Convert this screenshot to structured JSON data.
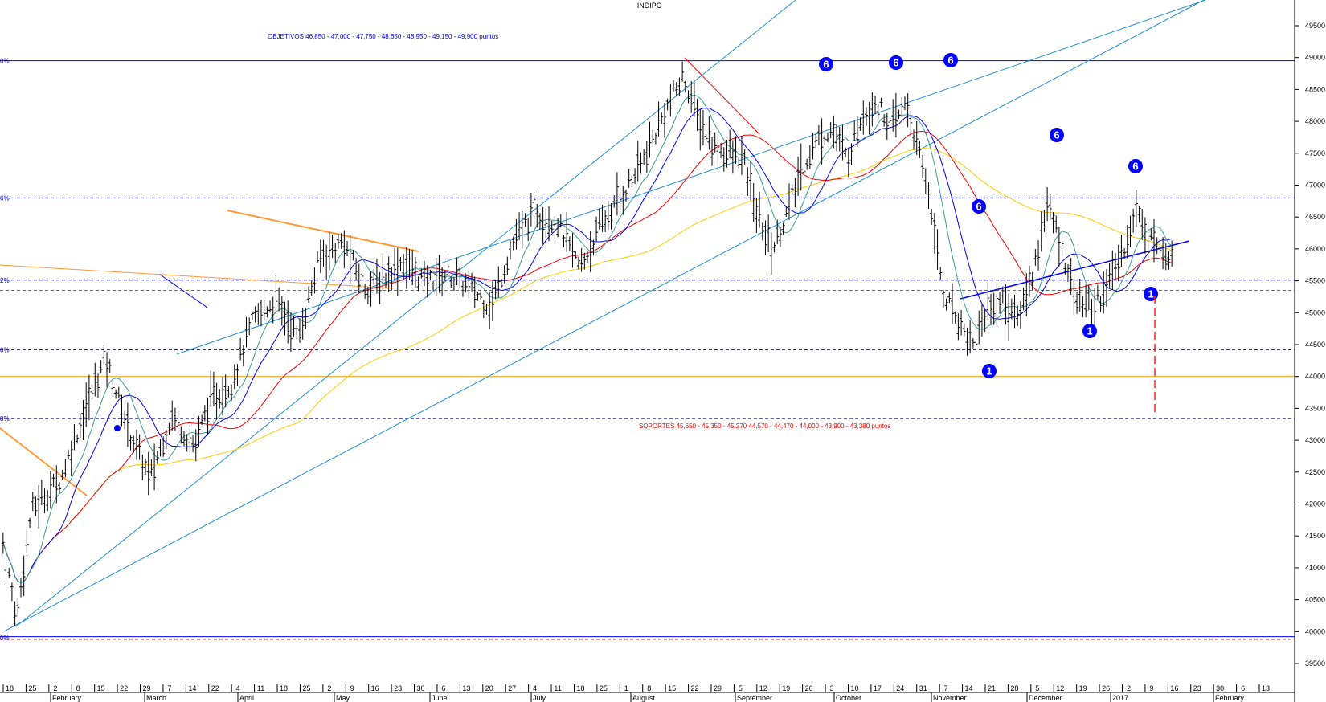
{
  "chart_data": {
    "type": "bar",
    "title": "INDIPC",
    "subtype": "ohlc-candlestick-daily",
    "x_axis": {
      "day_ticks": [
        "18",
        "25",
        "2",
        "8",
        "15",
        "22",
        "29",
        "7",
        "14",
        "22",
        "4",
        "11",
        "18",
        "25",
        "2",
        "9",
        "16",
        "23",
        "30",
        "6",
        "13",
        "20",
        "27",
        "4",
        "11",
        "18",
        "25",
        "1",
        "8",
        "15",
        "22",
        "29",
        "5",
        "12",
        "19",
        "26",
        "3",
        "10",
        "17",
        "24",
        "31",
        "7",
        "14",
        "21",
        "28",
        "5",
        "12",
        "19",
        "26",
        "2",
        "9",
        "16",
        "23",
        "30",
        "6",
        "13"
      ],
      "month_labels": [
        "February",
        "March",
        "April",
        "May",
        "June",
        "July",
        "August",
        "September",
        "October",
        "November",
        "December",
        "2017",
        "February"
      ]
    },
    "y_axis": {
      "ticks": [
        49500,
        49000,
        48500,
        48000,
        47500,
        47000,
        46500,
        46000,
        45500,
        45000,
        44500,
        44000,
        43500,
        43000,
        42500,
        42000,
        41500,
        41000,
        40500,
        40000,
        39500
      ],
      "range": [
        39000,
        49500
      ],
      "position": "right"
    },
    "fib_levels": [
      {
        "label": "0%",
        "value": 48950
      },
      {
        "label": "6%",
        "value": 46800
      },
      {
        "label": "2%",
        "value": 45510
      },
      {
        "label": "0%",
        "value": 44420
      },
      {
        "label": "8%",
        "value": 43340
      },
      {
        "label": "0%",
        "value": 39900
      }
    ],
    "horizontal_lines": [
      {
        "value": 48950,
        "style": "solid",
        "color": "#0000ff"
      },
      {
        "value": 46800,
        "style": "dashed",
        "color": "#0000cc"
      },
      {
        "value": 45510,
        "style": "dashed",
        "color": "#0000cc"
      },
      {
        "value": 45350,
        "style": "dashed",
        "color": "#ff4000"
      },
      {
        "value": 44420,
        "style": "dashed",
        "color": "#0000cc"
      },
      {
        "value": 44000,
        "style": "solid",
        "color": "#ff9900"
      },
      {
        "value": 43340,
        "style": "dashed",
        "color": "#0000cc"
      },
      {
        "value": 39920,
        "style": "solid",
        "color": "#0000ff"
      },
      {
        "value": 39880,
        "style": "dashed",
        "color": "#ff0000"
      }
    ],
    "annotations": {
      "objetivos": "OBJETIVOS 46,850 - 47,000 - 47,750 - 48,650 - 48,950 - 49,150 - 49,900  puntos",
      "soportes": "SOPORTES 45,650 - 45,350 - 45,270  44,570 - 44,470 - 44,000 - 43,900 - 43,380  puntos"
    },
    "wave_markers": [
      {
        "label": "6",
        "bar": 363,
        "value": 48840
      },
      {
        "label": "6",
        "bar": 392,
        "value": 48870
      },
      {
        "label": "6",
        "bar": 417,
        "value": 48900
      },
      {
        "label": "6",
        "bar": 429,
        "value": 46400
      },
      {
        "label": "6",
        "bar": 460,
        "value": 47620
      },
      {
        "label": "6",
        "bar": 496,
        "value": 46920
      },
      {
        "label": "1",
        "bar": 437,
        "value": 43870
      },
      {
        "label": "1",
        "bar": 481,
        "value": 44420
      },
      {
        "label": "1",
        "bar": 500,
        "value": 44880
      },
      {
        "label": "1",
        "bar": 150,
        "value": 42910
      }
    ],
    "series": [
      {
        "name": "",
        "color": "#ffcc00"
      },
      {
        "name": "",
        "color": "#ff0000"
      },
      {
        "name": "",
        "color": "#0000ff"
      },
      {
        "name": "",
        "color": "#3a9a9a"
      }
    ],
    "points": [
      {
        "x": 1,
        "y": 41400
      },
      {
        "x": 10,
        "y": 40200
      },
      {
        "x": 20,
        "y": 41900
      },
      {
        "x": 40,
        "y": 42400
      },
      {
        "x": 55,
        "y": 43400
      },
      {
        "x": 70,
        "y": 44300
      },
      {
        "x": 85,
        "y": 43200
      },
      {
        "x": 100,
        "y": 42400
      },
      {
        "x": 115,
        "y": 43400
      },
      {
        "x": 130,
        "y": 42900
      },
      {
        "x": 140,
        "y": 43600
      },
      {
        "x": 155,
        "y": 43900
      },
      {
        "x": 170,
        "y": 44900
      },
      {
        "x": 185,
        "y": 45200
      },
      {
        "x": 200,
        "y": 44600
      },
      {
        "x": 215,
        "y": 45900
      },
      {
        "x": 230,
        "y": 46100
      },
      {
        "x": 245,
        "y": 45400
      },
      {
        "x": 255,
        "y": 45500
      },
      {
        "x": 270,
        "y": 45800
      },
      {
        "x": 285,
        "y": 45500
      },
      {
        "x": 300,
        "y": 45600
      },
      {
        "x": 315,
        "y": 45400
      },
      {
        "x": 330,
        "y": 45100
      },
      {
        "x": 345,
        "y": 46100
      },
      {
        "x": 360,
        "y": 46600
      },
      {
        "x": 375,
        "y": 46400
      },
      {
        "x": 390,
        "y": 45700
      },
      {
        "x": 405,
        "y": 46400
      },
      {
        "x": 420,
        "y": 46900
      },
      {
        "x": 435,
        "y": 47500
      },
      {
        "x": 450,
        "y": 48300
      },
      {
        "x": 460,
        "y": 48700
      },
      {
        "x": 470,
        "y": 48000
      },
      {
        "x": 480,
        "y": 47600
      },
      {
        "x": 490,
        "y": 47500
      },
      {
        "x": 500,
        "y": 47400
      },
      {
        "x": 510,
        "y": 46500
      },
      {
        "x": 520,
        "y": 46000
      },
      {
        "x": 530,
        "y": 46600
      },
      {
        "x": 540,
        "y": 47300
      },
      {
        "x": 550,
        "y": 47700
      },
      {
        "x": 560,
        "y": 47900
      },
      {
        "x": 570,
        "y": 47400
      },
      {
        "x": 580,
        "y": 48100
      },
      {
        "x": 590,
        "y": 48300
      },
      {
        "x": 600,
        "y": 47900
      },
      {
        "x": 610,
        "y": 48300
      },
      {
        "x": 615,
        "y": 47800
      },
      {
        "x": 625,
        "y": 46900
      },
      {
        "x": 635,
        "y": 45300
      },
      {
        "x": 645,
        "y": 44900
      },
      {
        "x": 655,
        "y": 44500
      },
      {
        "x": 665,
        "y": 45100
      },
      {
        "x": 675,
        "y": 45200
      },
      {
        "x": 685,
        "y": 44900
      },
      {
        "x": 695,
        "y": 45600
      },
      {
        "x": 705,
        "y": 46700
      },
      {
        "x": 715,
        "y": 46000
      },
      {
        "x": 725,
        "y": 45200
      },
      {
        "x": 735,
        "y": 45100
      },
      {
        "x": 745,
        "y": 45400
      },
      {
        "x": 755,
        "y": 45900
      },
      {
        "x": 765,
        "y": 46600
      },
      {
        "x": 775,
        "y": 46200
      },
      {
        "x": 785,
        "y": 45800
      },
      {
        "x": 790,
        "y": 46100
      }
    ]
  }
}
